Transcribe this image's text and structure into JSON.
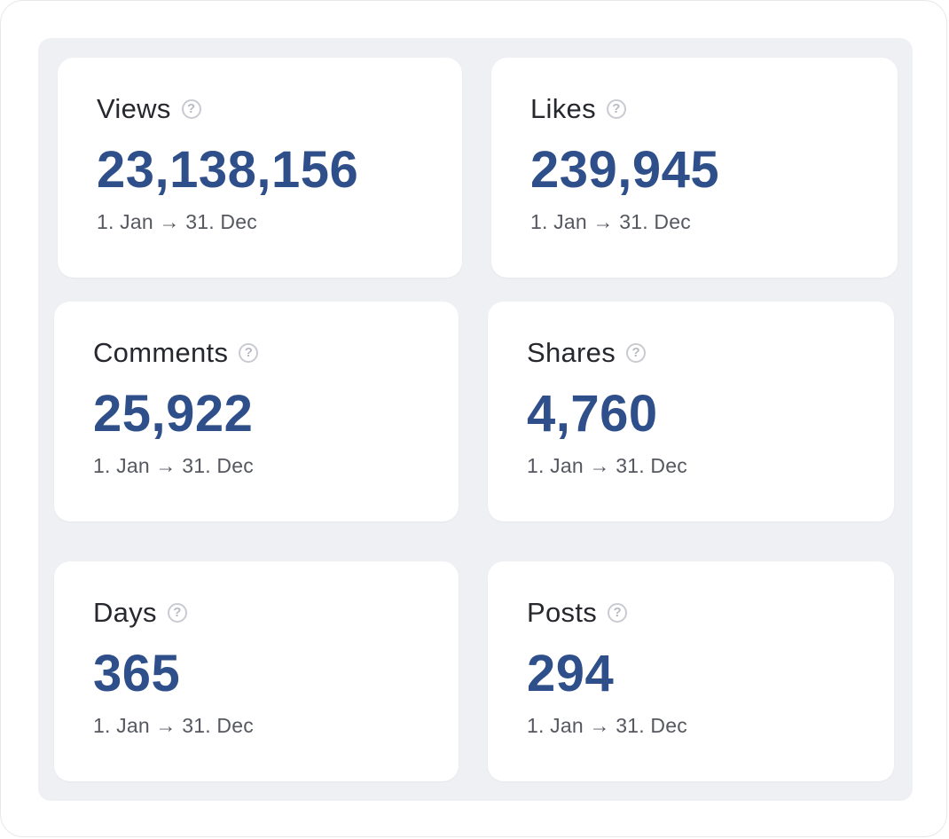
{
  "cards": [
    {
      "label": "Views",
      "value": "23,138,156",
      "range": "1. Jan → 31. Dec",
      "help_icon": "question-circle-icon"
    },
    {
      "label": "Likes",
      "value": "239,945",
      "range": "1. Jan → 31. Dec",
      "help_icon": "question-circle-icon"
    },
    {
      "label": "Comments",
      "value": "25,922",
      "range": "1. Jan → 31. Dec",
      "help_icon": "question-circle-icon"
    },
    {
      "label": "Shares",
      "value": "4,760",
      "range": "1. Jan → 31. Dec",
      "help_icon": "question-circle-icon"
    },
    {
      "label": "Days",
      "value": "365",
      "range": "1. Jan → 31. Dec",
      "help_icon": "question-circle-icon"
    },
    {
      "label": "Posts",
      "value": "294",
      "range": "1. Jan → 31. Dec",
      "help_icon": "question-circle-icon"
    }
  ],
  "colors": {
    "value": "#2f4f8b",
    "label": "#26282e",
    "range": "#55585f",
    "panel_background": "#eff0f4"
  }
}
